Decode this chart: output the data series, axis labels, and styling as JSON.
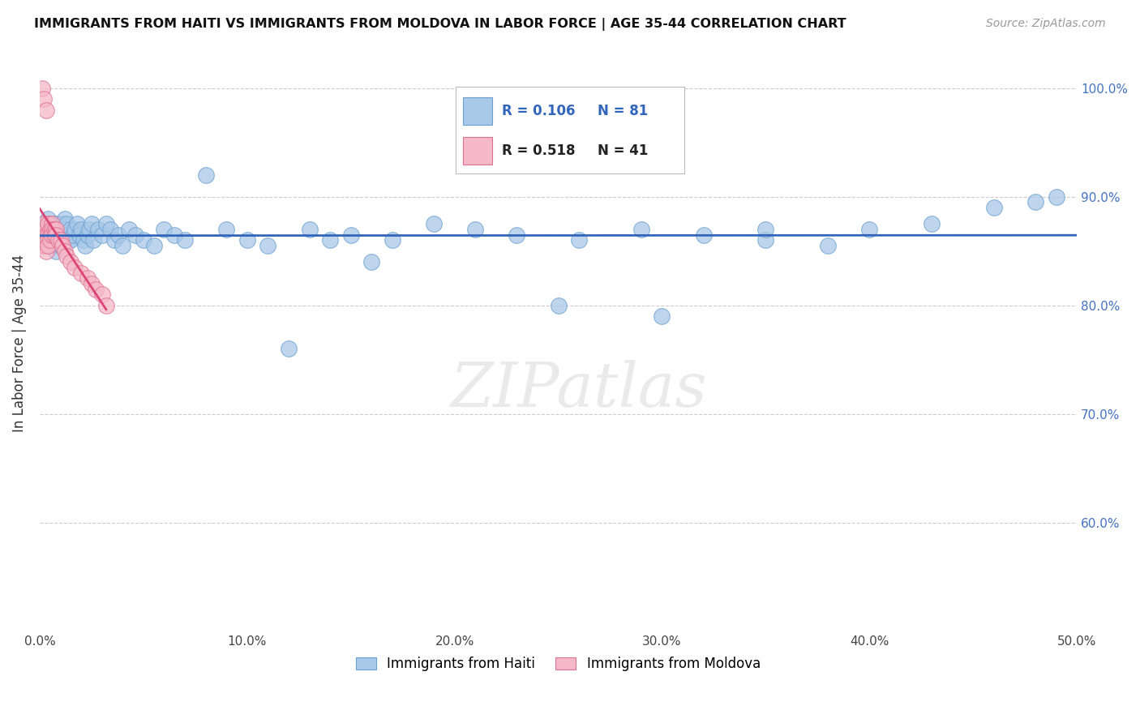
{
  "title": "IMMIGRANTS FROM HAITI VS IMMIGRANTS FROM MOLDOVA IN LABOR FORCE | AGE 35-44 CORRELATION CHART",
  "source": "Source: ZipAtlas.com",
  "ylabel": "In Labor Force | Age 35-44",
  "xlim": [
    0.0,
    0.5
  ],
  "ylim": [
    0.5,
    1.03
  ],
  "xticks": [
    0.0,
    0.1,
    0.2,
    0.3,
    0.4,
    0.5
  ],
  "xtick_labels": [
    "0.0%",
    "10.0%",
    "20.0%",
    "30.0%",
    "40.0%",
    "50.0%"
  ],
  "yticks": [
    0.6,
    0.7,
    0.8,
    0.9,
    1.0
  ],
  "ytick_labels": [
    "60.0%",
    "70.0%",
    "80.0%",
    "90.0%",
    "100.0%"
  ],
  "haiti_color": "#a8c8e8",
  "moldova_color": "#f4b8c8",
  "haiti_edge_color": "#6aa0d0",
  "moldova_edge_color": "#e07090",
  "trend_haiti_color": "#3366bb",
  "trend_moldova_color": "#dd4477",
  "R_haiti": 0.106,
  "N_haiti": 81,
  "R_moldova": 0.518,
  "N_moldova": 41,
  "legend_haiti": "Immigrants from Haiti",
  "legend_moldova": "Immigrants from Moldova",
  "watermark": "ZIPatlas",
  "haiti_x": [
    0.002,
    0.003,
    0.003,
    0.004,
    0.004,
    0.005,
    0.005,
    0.005,
    0.006,
    0.006,
    0.007,
    0.007,
    0.007,
    0.008,
    0.008,
    0.008,
    0.009,
    0.009,
    0.01,
    0.01,
    0.01,
    0.011,
    0.011,
    0.012,
    0.012,
    0.013,
    0.013,
    0.014,
    0.015,
    0.015,
    0.016,
    0.017,
    0.018,
    0.019,
    0.02,
    0.021,
    0.022,
    0.023,
    0.024,
    0.025,
    0.026,
    0.028,
    0.03,
    0.032,
    0.034,
    0.036,
    0.038,
    0.04,
    0.043,
    0.046,
    0.05,
    0.055,
    0.06,
    0.065,
    0.07,
    0.08,
    0.09,
    0.1,
    0.11,
    0.13,
    0.15,
    0.17,
    0.19,
    0.21,
    0.23,
    0.26,
    0.29,
    0.32,
    0.35,
    0.38,
    0.25,
    0.3,
    0.35,
    0.4,
    0.43,
    0.46,
    0.48,
    0.49,
    0.12,
    0.14,
    0.16
  ],
  "haiti_y": [
    0.87,
    0.875,
    0.865,
    0.88,
    0.87,
    0.875,
    0.865,
    0.855,
    0.87,
    0.86,
    0.875,
    0.865,
    0.855,
    0.87,
    0.86,
    0.85,
    0.875,
    0.865,
    0.87,
    0.86,
    0.855,
    0.875,
    0.865,
    0.88,
    0.87,
    0.875,
    0.865,
    0.86,
    0.87,
    0.86,
    0.865,
    0.87,
    0.875,
    0.865,
    0.87,
    0.86,
    0.855,
    0.865,
    0.87,
    0.875,
    0.86,
    0.87,
    0.865,
    0.875,
    0.87,
    0.86,
    0.865,
    0.855,
    0.87,
    0.865,
    0.86,
    0.855,
    0.87,
    0.865,
    0.86,
    0.92,
    0.87,
    0.86,
    0.855,
    0.87,
    0.865,
    0.86,
    0.875,
    0.87,
    0.865,
    0.86,
    0.87,
    0.865,
    0.86,
    0.855,
    0.8,
    0.79,
    0.87,
    0.87,
    0.875,
    0.89,
    0.895,
    0.9,
    0.76,
    0.86,
    0.84
  ],
  "moldova_x": [
    0.001,
    0.001,
    0.001,
    0.002,
    0.002,
    0.002,
    0.003,
    0.003,
    0.003,
    0.003,
    0.003,
    0.004,
    0.004,
    0.004,
    0.004,
    0.005,
    0.005,
    0.005,
    0.006,
    0.006,
    0.006,
    0.007,
    0.007,
    0.008,
    0.008,
    0.009,
    0.01,
    0.011,
    0.012,
    0.013,
    0.015,
    0.017,
    0.02,
    0.023,
    0.025,
    0.027,
    0.03,
    0.032,
    0.001,
    0.002,
    0.003
  ],
  "moldova_y": [
    0.87,
    0.86,
    0.855,
    0.875,
    0.865,
    0.855,
    0.87,
    0.865,
    0.86,
    0.855,
    0.85,
    0.875,
    0.865,
    0.86,
    0.855,
    0.87,
    0.865,
    0.86,
    0.875,
    0.87,
    0.865,
    0.87,
    0.865,
    0.87,
    0.865,
    0.86,
    0.86,
    0.855,
    0.85,
    0.845,
    0.84,
    0.835,
    0.83,
    0.825,
    0.82,
    0.815,
    0.81,
    0.8,
    1.0,
    0.99,
    0.98
  ]
}
